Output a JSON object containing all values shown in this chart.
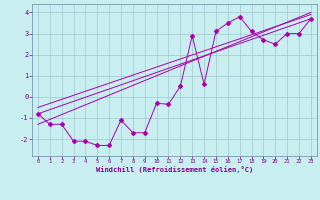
{
  "background_color": "#c8eef0",
  "line_color": "#aa00aa",
  "grid_color": "#a0c8d0",
  "xlabel": "Windchill (Refroidissement éolien,°C)",
  "xlabel_color": "#880088",
  "tick_color": "#880088",
  "spine_color": "#6688aa",
  "xlim": [
    -0.5,
    23.5
  ],
  "ylim": [
    -2.8,
    4.4
  ],
  "yticks": [
    -2,
    -1,
    0,
    1,
    2,
    3,
    4
  ],
  "xticks": [
    0,
    1,
    2,
    3,
    4,
    5,
    6,
    7,
    8,
    9,
    10,
    11,
    12,
    13,
    14,
    15,
    16,
    17,
    18,
    19,
    20,
    21,
    22,
    23
  ],
  "series1_x": [
    0,
    1,
    2,
    3,
    4,
    5,
    6,
    7,
    8,
    9,
    10,
    11,
    12,
    13,
    14,
    15,
    16,
    17,
    18,
    19,
    20,
    21,
    22,
    23
  ],
  "series1_y": [
    -0.8,
    -1.3,
    -1.3,
    -2.1,
    -2.1,
    -2.3,
    -2.3,
    -1.1,
    -1.7,
    -1.7,
    -0.3,
    -0.35,
    0.5,
    2.9,
    0.6,
    3.1,
    3.5,
    3.8,
    3.1,
    2.7,
    2.5,
    3.0,
    3.0,
    3.7
  ],
  "series2_x": [
    0,
    23
  ],
  "series2_y": [
    -0.8,
    3.7
  ],
  "series3_x": [
    0,
    23
  ],
  "series3_y": [
    -1.3,
    4.0
  ],
  "series4_x": [
    0,
    23
  ],
  "series4_y": [
    -0.5,
    3.9
  ],
  "figsize": [
    3.2,
    2.0
  ],
  "dpi": 100
}
